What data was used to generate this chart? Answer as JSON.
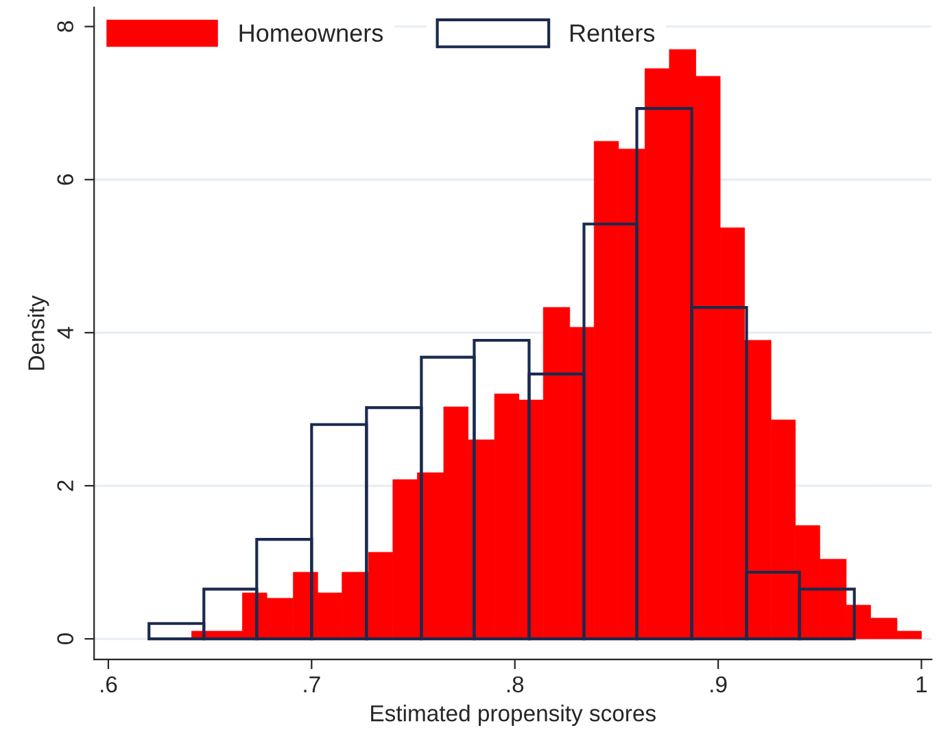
{
  "chart_data": [
    {
      "type": "histogram",
      "xlabel": "Estimated propensity scores",
      "ylabel": "Density",
      "bins": [
        0.641,
        0.653,
        0.666,
        0.678,
        0.691,
        0.703,
        0.715,
        0.728,
        0.74,
        0.752,
        0.765,
        0.777,
        0.79,
        0.802,
        0.814,
        0.827,
        0.839,
        0.851,
        0.864,
        0.876,
        0.889,
        0.901,
        0.913,
        0.926,
        0.938,
        0.95,
        0.963,
        0.975,
        0.988,
        1.0
      ],
      "series": [
        {
          "name": "Homeowners",
          "color": "#ff0000",
          "values": [
            0.1,
            0.1,
            0.6,
            0.53,
            0.87,
            0.6,
            0.87,
            1.13,
            2.08,
            2.17,
            3.03,
            2.6,
            3.2,
            3.12,
            4.33,
            4.07,
            6.5,
            6.4,
            7.45,
            7.7,
            7.35,
            5.37,
            3.9,
            2.86,
            1.48,
            1.04,
            0.44,
            0.27,
            0.1
          ]
        }
      ],
      "xlim": [
        0.593,
        1.005
      ],
      "ylim": [
        -0.27,
        8.25
      ],
      "xticks": [
        {
          "value": 0.6,
          "label": ".6"
        },
        {
          "value": 0.7,
          "label": ".7"
        },
        {
          "value": 0.8,
          "label": ".8"
        },
        {
          "value": 0.9,
          "label": ".9"
        },
        1
      ],
      "yticks": [
        0,
        2,
        4,
        6,
        8
      ],
      "grid": "y",
      "legend": "top left"
    },
    {
      "type": "histogram",
      "bins": [
        0.62,
        0.647,
        0.673,
        0.7,
        0.727,
        0.754,
        0.78,
        0.807,
        0.834,
        0.86,
        0.887,
        0.914,
        0.94,
        0.967
      ],
      "series": [
        {
          "name": "Renters",
          "color": "#1a2a4f",
          "values": [
            0.2,
            0.65,
            1.3,
            2.8,
            3.02,
            3.68,
            3.9,
            3.46,
            5.42,
            6.93,
            4.33,
            0.87,
            0.65
          ]
        }
      ],
      "xlim": [
        0.593,
        1.005
      ],
      "ylim": [
        -0.27,
        8.25
      ],
      "legend": "top left"
    }
  ]
}
